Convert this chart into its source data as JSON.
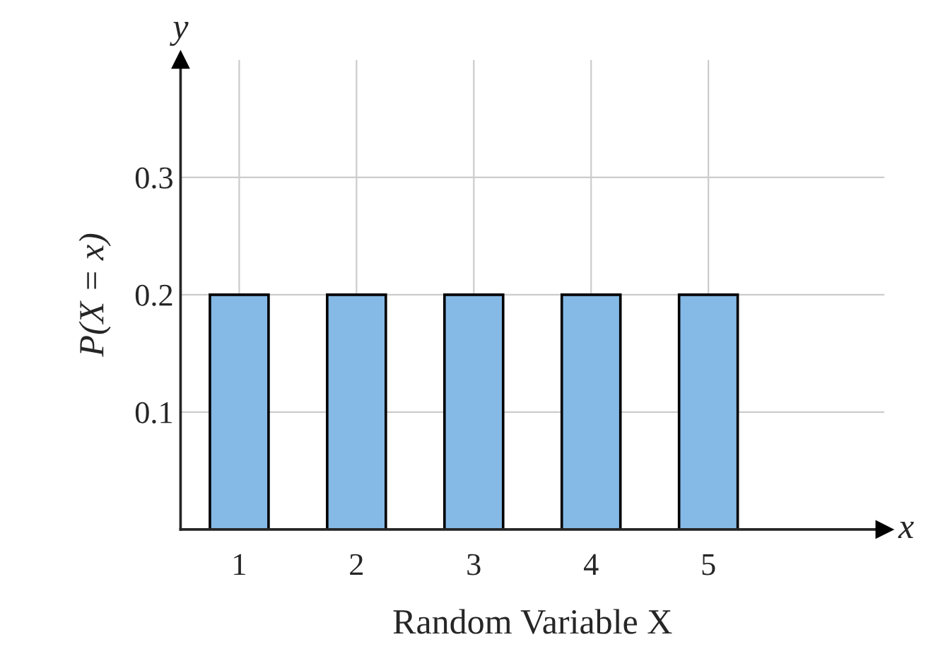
{
  "chart_data": {
    "type": "bar",
    "xlabel": "Random Variable X",
    "ylabel": "P(X = x)",
    "x": [
      1,
      2,
      3,
      4,
      5
    ],
    "values": [
      0.2,
      0.2,
      0.2,
      0.2,
      0.2
    ],
    "color": "#85b9e6",
    "xlim": [
      0.5,
      6.5
    ],
    "xticks": [
      1,
      2,
      3,
      4,
      5
    ],
    "ylim": [
      0,
      0.4
    ],
    "yticks": [
      0.1,
      0.2,
      0.3
    ],
    "grid": true,
    "annotations": [
      "x",
      "y"
    ]
  }
}
